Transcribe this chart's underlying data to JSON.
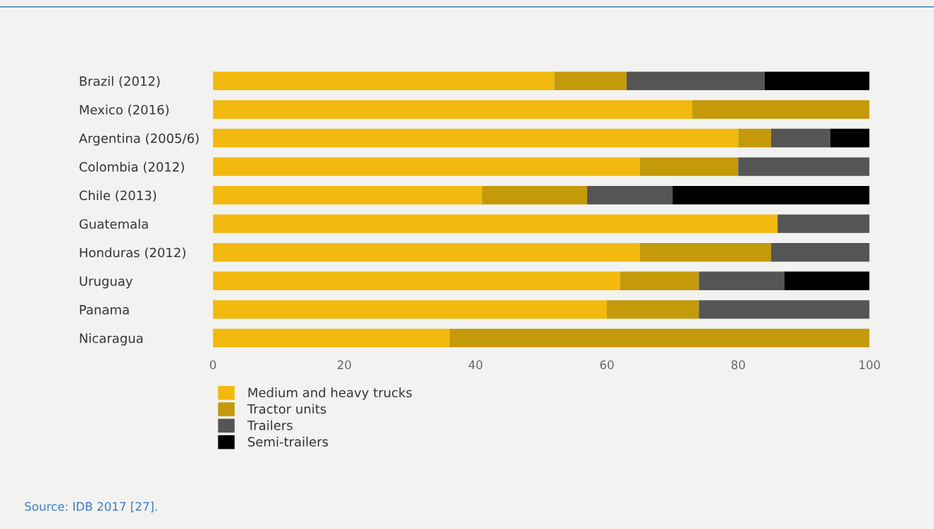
{
  "chart_data": {
    "type": "bar",
    "orientation": "horizontal",
    "stacked": true,
    "categories": [
      "Brazil (2012)",
      "Mexico (2016)",
      "Argentina (2005/6)",
      "Colombia (2012)",
      "Chile (2013)",
      "Guatemala",
      "Honduras (2012)",
      "Uruguay",
      "Panama",
      "Nicaragua"
    ],
    "series": [
      {
        "name": "Medium and heavy trucks",
        "color": "#f2b90f",
        "values": [
          52,
          73,
          80,
          65,
          41,
          86,
          65,
          62,
          60,
          36
        ]
      },
      {
        "name": "Tractor units",
        "color": "#c49a0a",
        "values": [
          11,
          27,
          5,
          15,
          16,
          0,
          20,
          12,
          14,
          64
        ]
      },
      {
        "name": "Trailers",
        "color": "#555555",
        "values": [
          21,
          0,
          9,
          20,
          13,
          14,
          15,
          13,
          26,
          0
        ]
      },
      {
        "name": "Semi-trailers",
        "color": "#000000",
        "values": [
          16,
          0,
          6,
          0,
          30,
          0,
          0,
          13,
          0,
          0
        ]
      }
    ],
    "xlim": [
      0,
      100
    ],
    "xticks": [
      0,
      20,
      40,
      60,
      80,
      100
    ],
    "grid": false,
    "legend": "bottom",
    "annotations": [
      "Source: IDB 2017 [27]."
    ]
  }
}
